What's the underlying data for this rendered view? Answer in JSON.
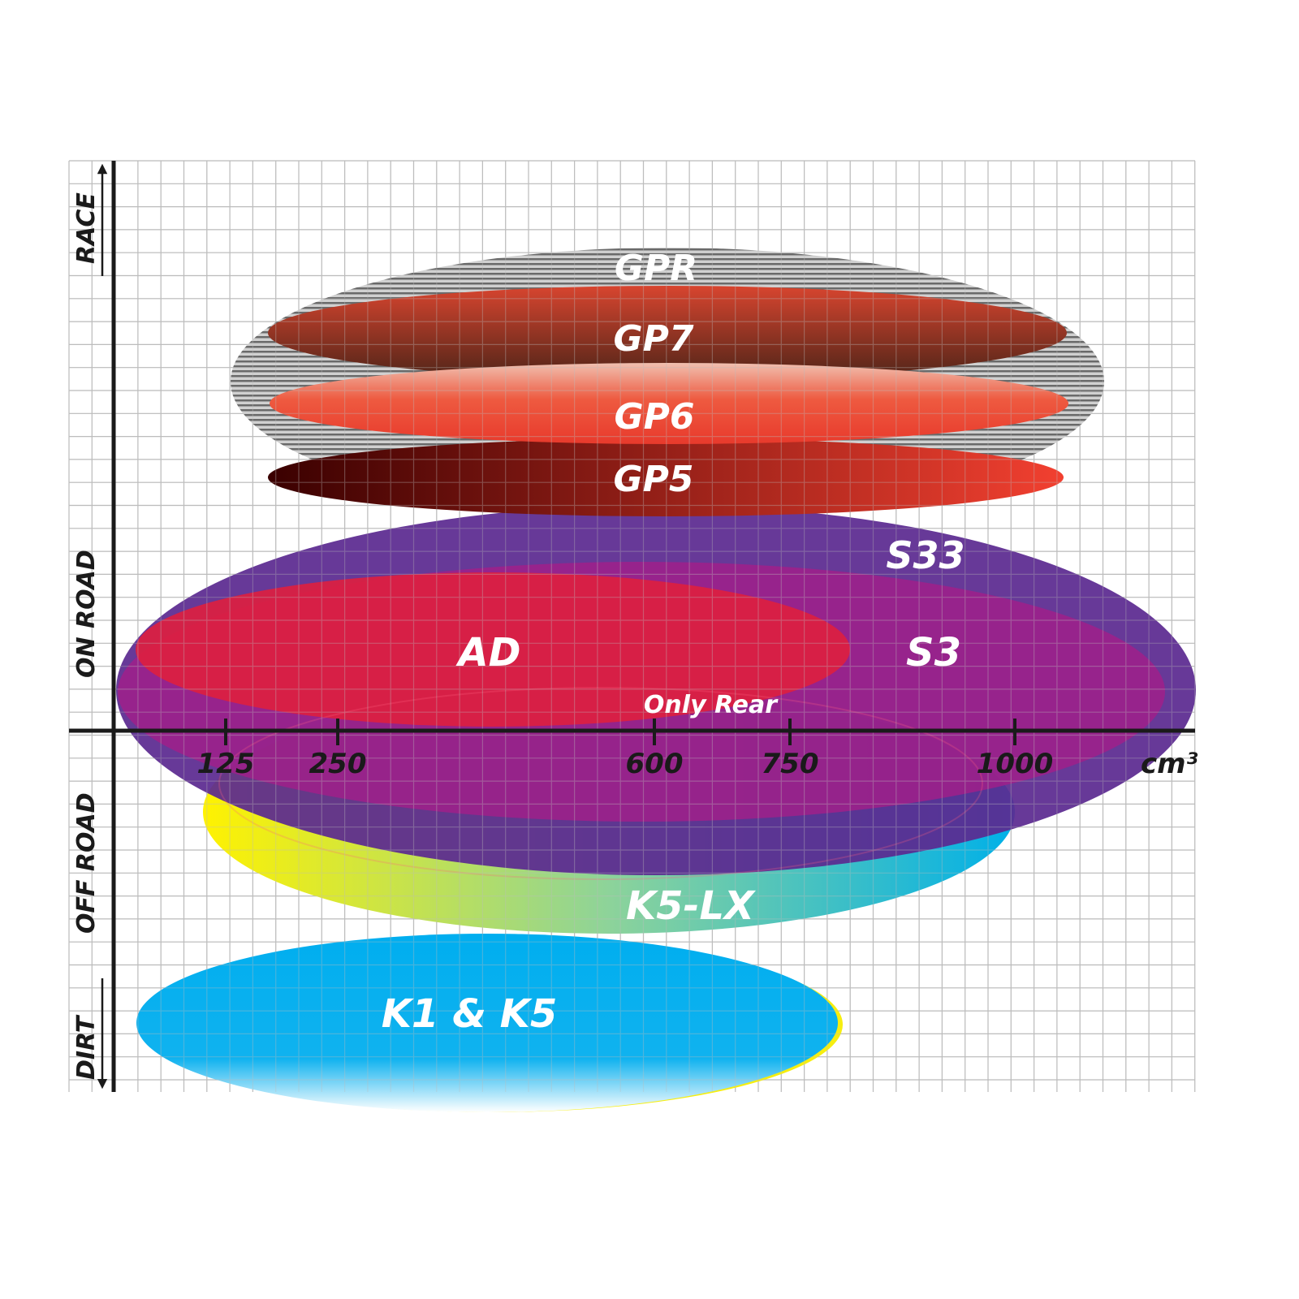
{
  "chart_data": {
    "type": "ellipse-positioning",
    "xlabel": "cm³",
    "x_ticks": [
      "125",
      "250",
      "600",
      "750",
      "1000"
    ],
    "y_labels": [
      "RACE",
      "ON ROAD",
      "OFF ROAD",
      "DIRT"
    ],
    "grid": true,
    "series": [
      {
        "name": "GPR",
        "color": "#9a9a9a"
      },
      {
        "name": "GP7",
        "color": "#7a3324"
      },
      {
        "name": "GP6",
        "color": "#e8452f"
      },
      {
        "name": "GP5",
        "color": "#8a1a10"
      },
      {
        "name": "S33",
        "color": "#5b2a90"
      },
      {
        "name": "S3",
        "color": "#a0208a"
      },
      {
        "name": "AD",
        "color": "#dc2040"
      },
      {
        "name": "K5-LX",
        "color": "#f6ee10"
      },
      {
        "name": "K1 & K5",
        "color": "#00aeef"
      }
    ],
    "annotations": [
      "Only Rear"
    ]
  }
}
